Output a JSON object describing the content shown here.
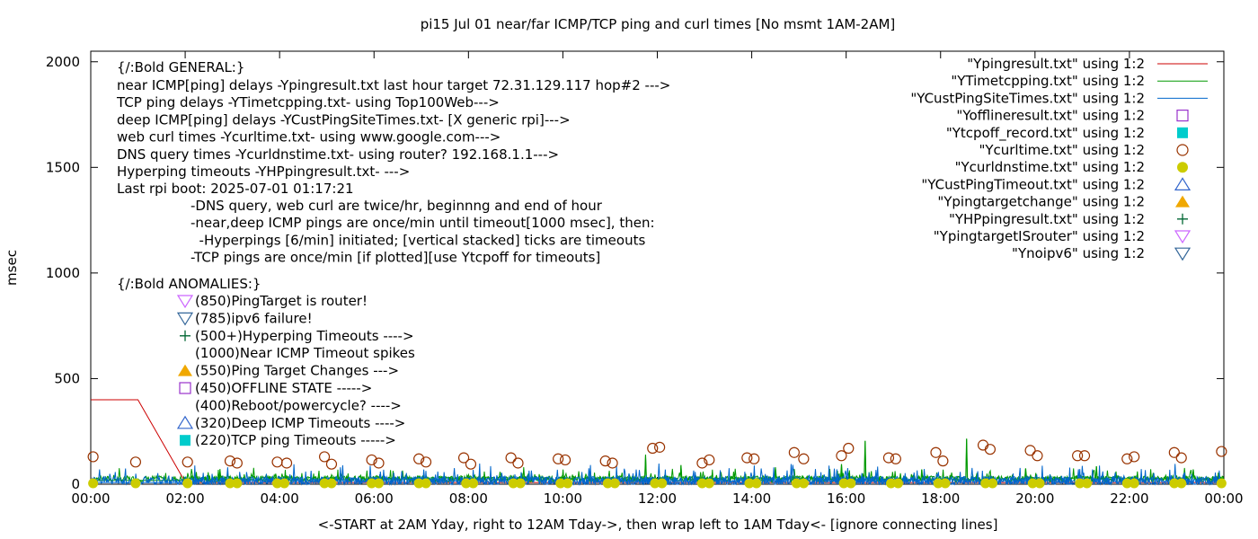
{
  "chart_data": {
    "type": "line",
    "title": "pi15 Jul 01  near/far ICMP/TCP ping and curl times [No msmt 1AM-2AM]",
    "xlabel": "<-START at 2AM Yday, right to 12AM Tday->, then wrap left to 1AM Tday<- [ignore connecting lines]",
    "ylabel": "msec",
    "xlim": [
      0,
      24
    ],
    "ylim": [
      0,
      2050
    ],
    "x_ticks": [
      {
        "v": 0,
        "label": "00:00"
      },
      {
        "v": 2,
        "label": "02:00"
      },
      {
        "v": 4,
        "label": "04:00"
      },
      {
        "v": 6,
        "label": "06:00"
      },
      {
        "v": 8,
        "label": "08:00"
      },
      {
        "v": 10,
        "label": "10:00"
      },
      {
        "v": 12,
        "label": "12:00"
      },
      {
        "v": 14,
        "label": "14:00"
      },
      {
        "v": 16,
        "label": "16:00"
      },
      {
        "v": 18,
        "label": "18:00"
      },
      {
        "v": 20,
        "label": "20:00"
      },
      {
        "v": 22,
        "label": "22:00"
      },
      {
        "v": 24,
        "label": "00:00"
      }
    ],
    "y_ticks": [
      {
        "v": 0,
        "label": "0"
      },
      {
        "v": 500,
        "label": "500"
      },
      {
        "v": 1000,
        "label": "1000"
      },
      {
        "v": 1500,
        "label": "1500"
      },
      {
        "v": 2000,
        "label": "2000"
      }
    ],
    "grid": false,
    "legend_position": "top-right",
    "legend": [
      {
        "label": "\"Ypingresult.txt\" using 1:2",
        "style": "line",
        "color": "#cc0000"
      },
      {
        "label": "\"YTimetcpping.txt\" using 1:2",
        "style": "line",
        "color": "#009900"
      },
      {
        "label": "\"YCustPingSiteTimes.txt\" using 1:2",
        "style": "line",
        "color": "#0066cc"
      },
      {
        "label": "\"Yofflineresult.txt\" using 1:2",
        "style": "open-square",
        "color": "#9933cc"
      },
      {
        "label": "\"Ytcpoff_record.txt\" using 1:2",
        "style": "filled-square",
        "color": "#00cccc"
      },
      {
        "label": "\"Ycurltime.txt\" using 1:2",
        "style": "open-circle",
        "color": "#993300"
      },
      {
        "label": "\"Ycurldnstime.txt\" using 1:2",
        "style": "filled-circle",
        "color": "#cccc00"
      },
      {
        "label": "\"YCustPingTimeout.txt\" using 1:2",
        "style": "open-triangle-up",
        "color": "#3366cc"
      },
      {
        "label": "\"Ypingtargetchange\" using 1:2",
        "style": "filled-triangle-up",
        "color": "#f0a800"
      },
      {
        "label": "\"YHPpingresult.txt\" using 1:2",
        "style": "plus",
        "color": "#006633"
      },
      {
        "label": "\"YpingtargetISrouter\" using 1:2",
        "style": "open-triangle-down",
        "color": "#cc66ff"
      },
      {
        "label": "\"Ynoipv6\" using 1:2",
        "style": "open-triangle-down",
        "color": "#336699"
      }
    ],
    "annotations": {
      "general_header": "{/:Bold GENERAL:}",
      "general_lines": [
        "near ICMP[ping] delays -Ypingresult.txt last hour target 72.31.129.117 hop#2 --->",
        "TCP ping delays -YTimetcpping.txt- using Top100Web--->",
        "deep ICMP[ping] delays -YCustPingSiteTimes.txt- [X generic rpi]--->",
        "web curl times -Ycurltime.txt- using www.google.com--->",
        "DNS query times -Ycurldnstime.txt- using router? 192.168.1.1--->",
        "Hyperping timeouts -YHPpingresult.txt- --->",
        "Last rpi boot: 2025-07-01 01:17:21"
      ],
      "notes": [
        "-DNS query, web curl are twice/hr, beginnng and end of hour",
        "-near,deep ICMP pings are once/min until timeout[1000 msec], then:",
        "  -Hyperpings [6/min] initiated; [vertical stacked] ticks are timeouts",
        "-TCP pings are once/min [if plotted][use Ytcpoff for timeouts]"
      ],
      "anomalies_header": "{/:Bold ANOMALIES:}",
      "anomalies": [
        {
          "marker": "open-triangle-down",
          "color": "#cc66ff",
          "text": "(850)PingTarget is router!"
        },
        {
          "marker": "open-triangle-down",
          "color": "#336699",
          "text": "(785)ipv6 failure!"
        },
        {
          "marker": "plus",
          "color": "#006633",
          "text": "(500+)Hyperping Timeouts ---->"
        },
        {
          "marker": "none",
          "color": "#000000",
          "text": "(1000)Near ICMP Timeout spikes"
        },
        {
          "marker": "filled-triangle-up",
          "color": "#f0a800",
          "text": "(550)Ping Target Changes --->"
        },
        {
          "marker": "open-square",
          "color": "#9933cc",
          "text": "(450)OFFLINE STATE ----->"
        },
        {
          "marker": "none",
          "color": "#000000",
          "text": "(400)Reboot/powercycle? ---->"
        },
        {
          "marker": "open-triangle-up",
          "color": "#3366cc",
          "text": "(320)Deep ICMP Timeouts ---->"
        },
        {
          "marker": "filled-square",
          "color": "#00cccc",
          "text": "(220)TCP ping Timeouts ----->"
        }
      ]
    },
    "series": [
      {
        "name": "\"Ypingresult.txt\" using 1:2",
        "color": "#cc0000",
        "x": [
          0,
          0.05,
          1.0,
          2.0,
          2.1,
          24
        ],
        "y": [
          400,
          400,
          400,
          10,
          8,
          8
        ]
      },
      {
        "name": "\"YTimetcpping.txt\" using 1:2",
        "color": "#009900",
        "baseline": 25,
        "noise": 20,
        "spikes": [
          [
            11.75,
            140
          ],
          [
            12.5,
            90
          ],
          [
            14.5,
            80
          ],
          [
            15.9,
            95
          ],
          [
            16.4,
            205
          ],
          [
            17.6,
            70
          ],
          [
            18.55,
            215
          ],
          [
            19.8,
            75
          ],
          [
            21.3,
            85
          ],
          [
            23.35,
            70
          ]
        ]
      },
      {
        "name": "\"YCustPingSiteTimes.txt\" using 1:2",
        "color": "#0066cc",
        "baseline": 15,
        "noise": 30
      },
      {
        "name": "\"Ycurltime.txt\" using 1:2",
        "color": "#993300",
        "points": [
          [
            0.05,
            130
          ],
          [
            0.95,
            105
          ],
          [
            2.05,
            105
          ],
          [
            2.95,
            110
          ],
          [
            3.1,
            100
          ],
          [
            3.95,
            105
          ],
          [
            4.15,
            100
          ],
          [
            4.95,
            130
          ],
          [
            5.1,
            95
          ],
          [
            5.95,
            115
          ],
          [
            6.1,
            100
          ],
          [
            6.95,
            120
          ],
          [
            7.1,
            105
          ],
          [
            7.9,
            125
          ],
          [
            8.05,
            95
          ],
          [
            8.9,
            125
          ],
          [
            9.05,
            100
          ],
          [
            9.9,
            120
          ],
          [
            10.05,
            115
          ],
          [
            10.9,
            110
          ],
          [
            11.05,
            100
          ],
          [
            11.9,
            170
          ],
          [
            12.05,
            175
          ],
          [
            12.95,
            100
          ],
          [
            13.1,
            115
          ],
          [
            13.9,
            125
          ],
          [
            14.05,
            120
          ],
          [
            14.9,
            150
          ],
          [
            15.1,
            120
          ],
          [
            15.9,
            135
          ],
          [
            16.05,
            170
          ],
          [
            16.9,
            125
          ],
          [
            17.05,
            120
          ],
          [
            17.9,
            150
          ],
          [
            18.05,
            110
          ],
          [
            18.9,
            185
          ],
          [
            19.05,
            165
          ],
          [
            19.9,
            160
          ],
          [
            20.05,
            135
          ],
          [
            20.9,
            135
          ],
          [
            21.05,
            135
          ],
          [
            21.95,
            120
          ],
          [
            22.1,
            130
          ],
          [
            22.95,
            150
          ],
          [
            23.1,
            125
          ],
          [
            23.95,
            155
          ]
        ]
      },
      {
        "name": "\"Ycurldnstime.txt\" using 1:2",
        "color": "#cccc00",
        "points": [
          [
            0.05,
            0
          ],
          [
            0.95,
            0
          ],
          [
            2.05,
            0
          ],
          [
            2.95,
            0
          ],
          [
            3.1,
            0
          ],
          [
            3.95,
            0
          ],
          [
            4.1,
            0
          ],
          [
            4.95,
            0
          ],
          [
            5.1,
            0
          ],
          [
            5.95,
            0
          ],
          [
            6.1,
            0
          ],
          [
            6.95,
            0
          ],
          [
            7.1,
            0
          ],
          [
            7.95,
            0
          ],
          [
            8.1,
            0
          ],
          [
            8.95,
            0
          ],
          [
            9.1,
            0
          ],
          [
            9.95,
            0
          ],
          [
            10.1,
            0
          ],
          [
            10.95,
            0
          ],
          [
            11.1,
            0
          ],
          [
            11.95,
            0
          ],
          [
            12.1,
            0
          ],
          [
            12.95,
            0
          ],
          [
            13.1,
            0
          ],
          [
            13.95,
            0
          ],
          [
            14.1,
            0
          ],
          [
            14.95,
            0
          ],
          [
            15.1,
            0
          ],
          [
            15.95,
            0
          ],
          [
            16.1,
            0
          ],
          [
            16.95,
            0
          ],
          [
            17.1,
            0
          ],
          [
            17.95,
            0
          ],
          [
            18.1,
            0
          ],
          [
            18.95,
            0
          ],
          [
            19.1,
            0
          ],
          [
            19.95,
            0
          ],
          [
            20.1,
            0
          ],
          [
            20.95,
            0
          ],
          [
            21.1,
            0
          ],
          [
            21.95,
            0
          ],
          [
            22.1,
            0
          ],
          [
            22.95,
            0
          ],
          [
            23.1,
            0
          ],
          [
            23.95,
            0
          ]
        ]
      }
    ]
  }
}
